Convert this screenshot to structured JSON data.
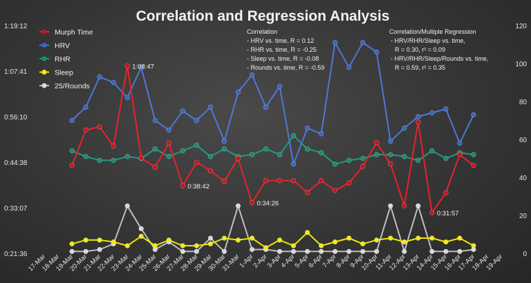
{
  "chart_data": {
    "type": "line",
    "title": "Correlation and Regression Analysis",
    "x": [
      "17-Mar",
      "18-Mar",
      "19-Mar",
      "20-Mar",
      "21-Mar",
      "22-Mar",
      "23-Mar",
      "24-Mar",
      "25-Mar",
      "26-Mar",
      "27-Mar",
      "28-Mar",
      "29-Mar",
      "30-Mar",
      "31-Mar",
      "1-Apr",
      "2-Apr",
      "3-Apr",
      "4-Apr",
      "5-Apr",
      "6-Apr",
      "7-Apr",
      "8-Apr",
      "9-Apr",
      "10-Apr",
      "11-Apr",
      "12-Apr",
      "13-Apr",
      "14-Apr",
      "15-Apr",
      "16-Apr",
      "17-Apr",
      "18-Apr",
      "19-Apr"
    ],
    "y_left": {
      "ticks": [
        "0:21:36",
        "0:33:07",
        "0:44:38",
        "0:56:10",
        "1:07:41",
        "1:19:12"
      ],
      "min_minutes": 21.6,
      "max_minutes": 79.2
    },
    "y_right": {
      "min": 0,
      "max": 120,
      "ticks": [
        "0",
        "20",
        "40",
        "60",
        "80",
        "100",
        "120"
      ]
    },
    "series": [
      {
        "name": "Murph Time",
        "axis": "left",
        "color": "#e8222a",
        "marker": "#c8141c",
        "values": [
          null,
          null,
          43.8,
          52.8,
          53.6,
          48.7,
          69.0,
          45.7,
          43.4,
          49.5,
          38.7,
          44.6,
          42.5,
          39.8,
          45.6,
          34.4,
          40.0,
          40.0,
          40.0,
          37.0,
          40.0,
          37.5,
          39.4,
          43.6,
          49.6,
          44.2,
          33.6,
          54.8,
          31.9,
          36.9,
          46.6,
          43.8,
          null,
          null
        ]
      },
      {
        "name": "HRV",
        "axis": "right",
        "color": "#4c79d8",
        "marker": "#3a64c4",
        "values": [
          null,
          null,
          70,
          77,
          93,
          90,
          82,
          98,
          70,
          65,
          75,
          70,
          77,
          59,
          85,
          94,
          77,
          88,
          47,
          66,
          63,
          111,
          98,
          111,
          106,
          59,
          66,
          72,
          74,
          76,
          58,
          73,
          null,
          null
        ]
      },
      {
        "name": "RHR",
        "axis": "right",
        "color": "#1f9c82",
        "marker": "#1a8a72",
        "values": [
          null,
          null,
          54,
          51,
          49,
          49,
          51,
          50,
          55,
          51,
          54,
          57,
          51,
          55,
          51,
          52,
          55,
          52,
          62,
          55,
          53,
          47,
          49,
          50,
          52,
          52,
          51,
          49,
          54,
          50,
          53,
          52,
          null,
          null
        ]
      },
      {
        "name": "Sleep",
        "axis": "right",
        "color": "#f2e600",
        "marker": "#f4e81a",
        "values": [
          null,
          null,
          5,
          7,
          7,
          6,
          4,
          9,
          4,
          7,
          4,
          4,
          5,
          8,
          7,
          8,
          3,
          7,
          4,
          11,
          4,
          6,
          8,
          5,
          7,
          8,
          6,
          8,
          8,
          6,
          8,
          4,
          null,
          null
        ]
      },
      {
        "name": "25/Rounds",
        "axis": "right",
        "color": "#bfbfbf",
        "marker": "#d8d8d8",
        "values": [
          null,
          null,
          1,
          1,
          2,
          5,
          25,
          13,
          2,
          6,
          1,
          1,
          8,
          1,
          25,
          2,
          2,
          1,
          1,
          1,
          1,
          1,
          1,
          1,
          1,
          25,
          1,
          25,
          1,
          1,
          1,
          2,
          null,
          null
        ]
      }
    ],
    "data_labels": [
      {
        "series": 0,
        "index": 6,
        "text": "1:08:47"
      },
      {
        "series": 0,
        "index": 10,
        "text": "0:38:42"
      },
      {
        "series": 0,
        "index": 15,
        "text": "0:34:26"
      },
      {
        "series": 0,
        "index": 28,
        "text": "0:31:57"
      }
    ],
    "annotations": {
      "correlation": {
        "heading": "Correlation",
        "lines": [
          "- HRV vs. time, R = 0.12",
          "- RHR vs. time, R = -0.25",
          "- Sleep vs. time, R = -0.08",
          "- Rounds vs. time, R = -0.59"
        ]
      },
      "regression": {
        "heading": "Correlation/Multiple Regression",
        "lines": [
          "- HRV/RHR/Sleep vs. time,",
          "R = 0.30, r² = 0.09",
          "- HRV/RHR/Sleep/Rounds vs. time,",
          "R = 0.59, r² = 0.35"
        ]
      }
    },
    "legend_position": "top-left",
    "grid": false
  }
}
